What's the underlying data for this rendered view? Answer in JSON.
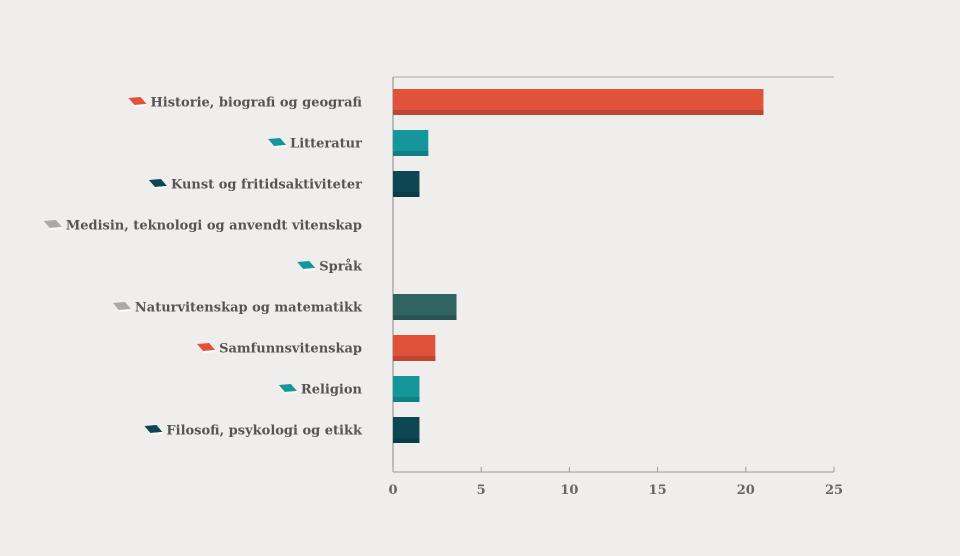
{
  "chart_data": {
    "type": "bar",
    "orientation": "horizontal",
    "categories": [
      "Historie, biografi og geografi",
      "Litteratur",
      "Kunst og fritidsaktiviteter",
      "Medisin, teknologi og anvendt vitenskap",
      "Språk",
      "Naturvitenskap og matematikk",
      "Samfunnsvitenskap",
      "Religion",
      "Filosofi, psykologi og etikk"
    ],
    "values": [
      21,
      2,
      1.5,
      0,
      0,
      3.6,
      2.4,
      1.5,
      1.5
    ],
    "bar_colors": [
      "#e05239",
      "#14969b",
      "#0d4753",
      "#a9a9a9",
      "#14969b",
      "#2f6462",
      "#e05239",
      "#14969b",
      "#0d4753"
    ],
    "icon_colors": [
      "#e05239",
      "#14969b",
      "#0d4753",
      "#a9a9a9",
      "#14969b",
      "#a9a9a9",
      "#e05239",
      "#14969b",
      "#0d4753"
    ],
    "icon": "book-icon",
    "xlim": [
      0,
      25
    ],
    "xticks": [
      "0",
      "5",
      "10",
      "15",
      "20",
      "25"
    ],
    "title": "",
    "xlabel": "",
    "ylabel": "",
    "grid": false,
    "legend": "none"
  }
}
